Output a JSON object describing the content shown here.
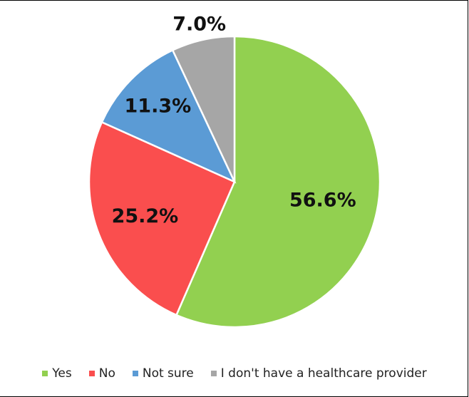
{
  "chart_data": {
    "type": "pie",
    "categories": [
      "Yes",
      "No",
      "Not sure",
      "I don't have a healthcare provider"
    ],
    "values": [
      56.6,
      25.2,
      11.3,
      7.0
    ],
    "data_labels": [
      "56.6%",
      "25.2%",
      "11.3%",
      "7.0%"
    ],
    "colors": [
      "#92d050",
      "#fa4e4e",
      "#5b9bd5",
      "#a6a6a6"
    ],
    "legend_position": "bottom",
    "start_angle": "top",
    "direction": "clockwise"
  }
}
